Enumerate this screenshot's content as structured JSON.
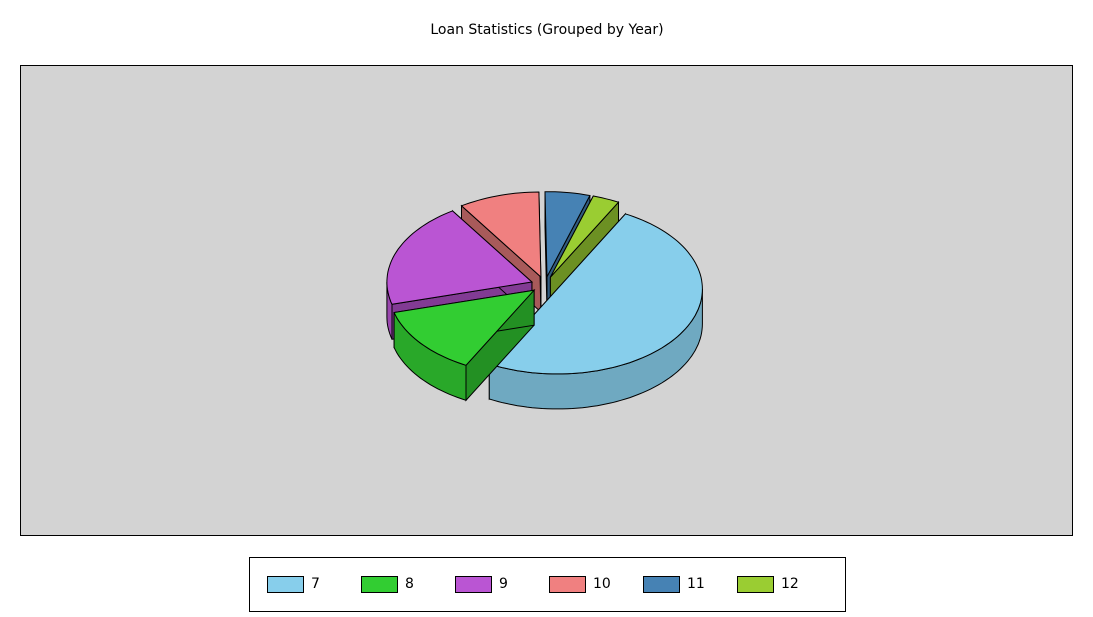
{
  "chart_data": {
    "type": "pie",
    "title": "Loan Statistics (Grouped by Year)",
    "categories": [
      "7",
      "8",
      "9",
      "10",
      "11",
      "12"
    ],
    "values": [
      50,
      13,
      20,
      9,
      5,
      3
    ],
    "colors": [
      "#87ceeb",
      "#32cd32",
      "#ba55d3",
      "#f08080",
      "#4682b4",
      "#9acd32"
    ],
    "legend": "bottom"
  }
}
